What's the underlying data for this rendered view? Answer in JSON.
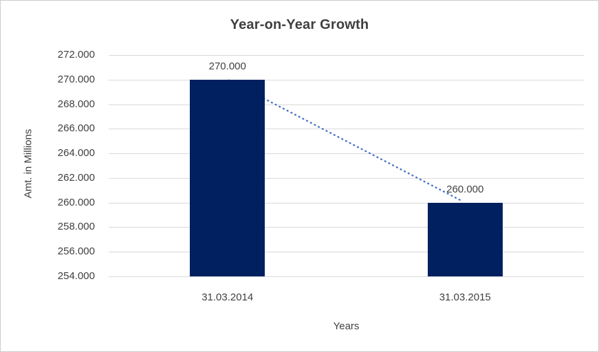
{
  "chart_data": {
    "type": "bar",
    "title": "Year-on-Year Growth",
    "xlabel": "Years",
    "ylabel": "Amt. in Millions",
    "categories": [
      "31.03.2014",
      "31.03.2015"
    ],
    "values": [
      270000,
      260000
    ],
    "value_labels": [
      "270.000",
      "260.000"
    ],
    "ylim": [
      254000,
      272000
    ],
    "ytick_step": 2000,
    "ytick_labels": [
      "254.000",
      "256.000",
      "258.000",
      "260.000",
      "262.000",
      "264.000",
      "266.000",
      "268.000",
      "270.000",
      "272.000"
    ],
    "grid": true,
    "legend": "none",
    "annotations": [
      {
        "type": "dotted-trend-line",
        "from_category": "31.03.2014",
        "to_category": "31.03.2015"
      }
    ],
    "colors": {
      "bar": "#002060",
      "trend_line": "#4472c4",
      "gridline": "#d9d9d9",
      "text": "#404040",
      "border": "#cbcbcb",
      "background": "#ffffff"
    }
  }
}
